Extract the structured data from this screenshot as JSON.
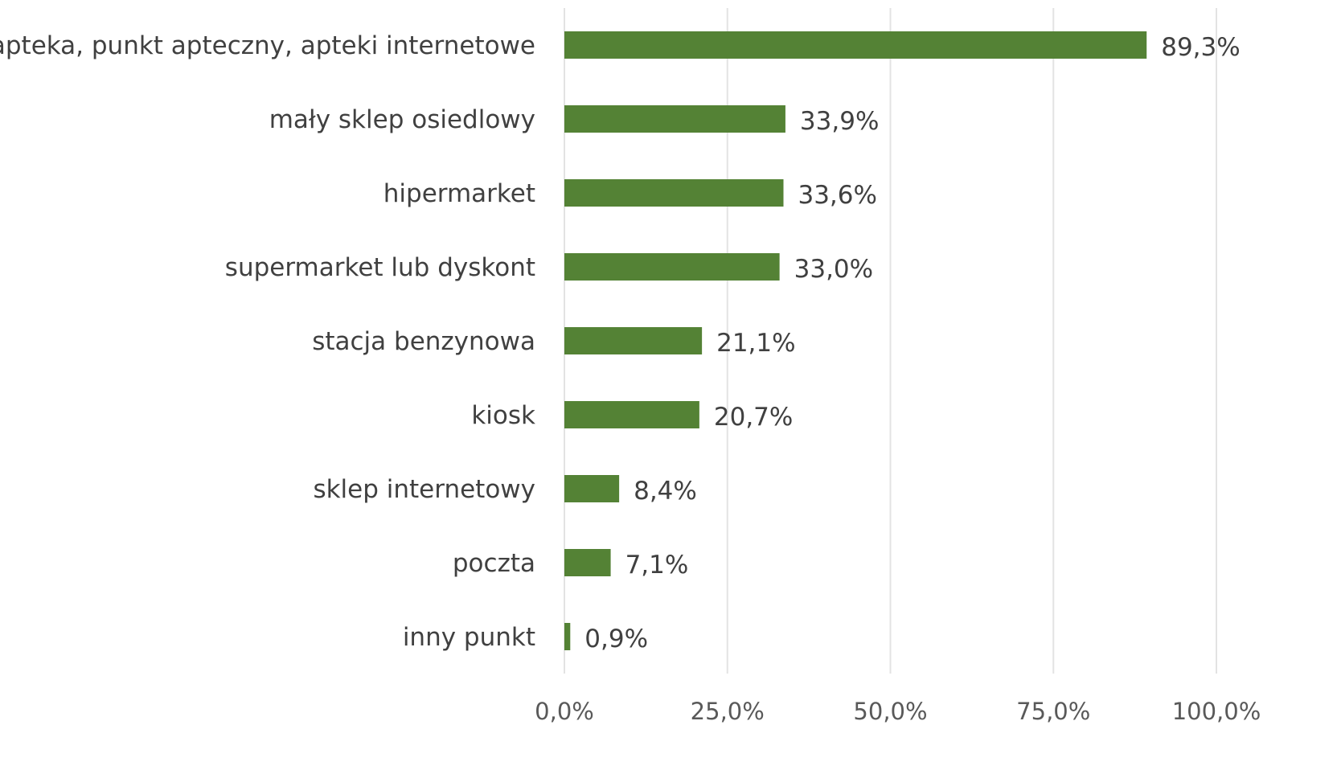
{
  "chart_data": {
    "type": "bar",
    "orientation": "horizontal",
    "categories": [
      "apteka, punkt apteczny, apteki internetowe",
      "mały sklep osiedlowy",
      "hipermarket",
      "supermarket lub dyskont",
      "stacja benzynowa",
      "kiosk",
      "sklep internetowy",
      "poczta",
      "inny punkt"
    ],
    "values": [
      89.3,
      33.9,
      33.6,
      33.0,
      21.1,
      20.7,
      8.4,
      7.1,
      0.9
    ],
    "value_labels": [
      "89,3%",
      "33,9%",
      "33,6%",
      "33,0%",
      "21,1%",
      "20,7%",
      "8,4%",
      "7,1%",
      "0,9%"
    ],
    "xlim": [
      0,
      100
    ],
    "xticks": [
      0,
      25,
      50,
      75,
      100
    ],
    "xtick_labels": [
      "0,0%",
      "25,0%",
      "50,0%",
      "75,0%",
      "100,0%"
    ],
    "grid": true,
    "bar_color": "#548235",
    "title": "",
    "xlabel": "",
    "ylabel": ""
  }
}
